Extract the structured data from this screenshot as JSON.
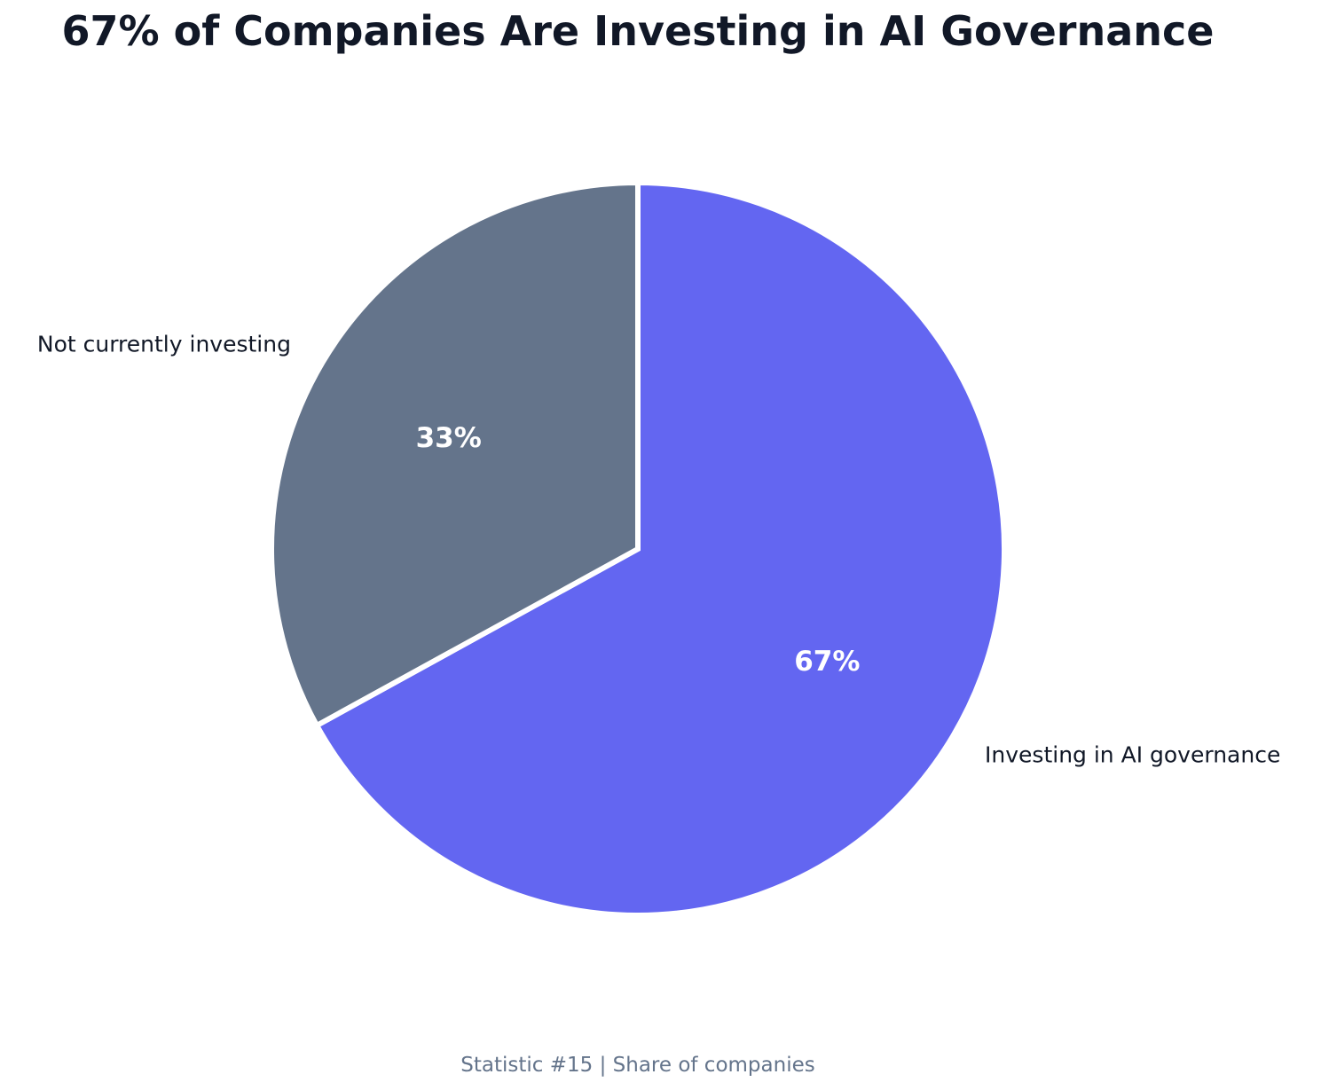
{
  "chart_data": {
    "type": "pie",
    "title": "67% of Companies Are Investing in AI Governance",
    "footer": "Statistic #15 | Share of companies",
    "start_angle_deg": 90,
    "direction": "clockwise",
    "slices": [
      {
        "label": "Investing in AI governance",
        "value": 67,
        "pct_label": "67%",
        "color": "#6366f1"
      },
      {
        "label": "Not currently investing",
        "value": 33,
        "pct_label": "33%",
        "color": "#64748b"
      }
    ],
    "colors": {
      "title": "#111827",
      "labels": "#111827",
      "pct_labels": "#ffffff",
      "footer": "#64748b",
      "slice_edge": "#ffffff"
    }
  }
}
